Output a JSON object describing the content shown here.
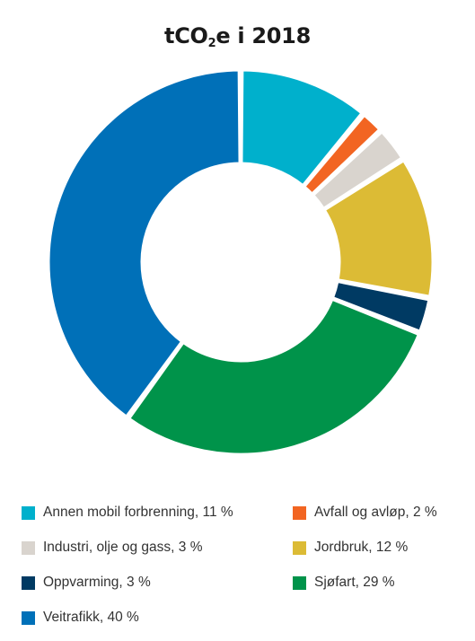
{
  "chart_data": {
    "type": "pie",
    "title_main": "tCO",
    "title_sub": "2",
    "title_rest": "e i 2018",
    "categories": [
      "Annen mobil forbrenning",
      "Avfall og avløp",
      "Industri, olje og gass",
      "Jordbruk",
      "Oppvarming",
      "Sjøfart",
      "Veitrafikk"
    ],
    "values": [
      11,
      2,
      3,
      12,
      3,
      29,
      40
    ],
    "colors": [
      "#00b0cc",
      "#f26522",
      "#d9d4ce",
      "#dcbb35",
      "#003a63",
      "#00934a",
      "#0070b8"
    ],
    "legend": [
      {
        "text": "Annen mobil forbrenning, 11 %",
        "color": "#00b0cc"
      },
      {
        "text": "Avfall og avløp, 2 %",
        "color": "#f26522"
      },
      {
        "text": "Industri, olje og gass, 3 %",
        "color": "#d9d4ce"
      },
      {
        "text": "Jordbruk, 12 %",
        "color": "#dcbb35"
      },
      {
        "text": "Oppvarming, 3 %",
        "color": "#003a63"
      },
      {
        "text": "Sjøfart, 29 %",
        "color": "#00934a"
      },
      {
        "text": "Veitrafikk, 40 %",
        "color": "#0070b8"
      }
    ],
    "legend_placement": "bottom"
  }
}
